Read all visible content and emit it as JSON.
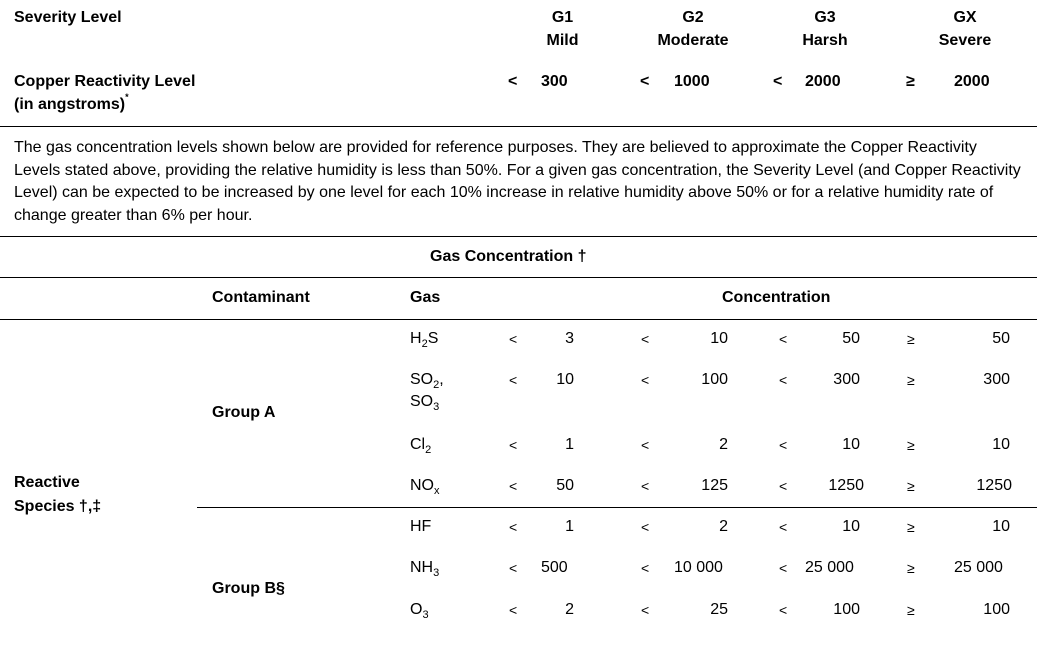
{
  "severity": {
    "label": "Severity Level",
    "levels": [
      {
        "code": "G1",
        "name": "Mild"
      },
      {
        "code": "G2",
        "name": "Moderate"
      },
      {
        "code": "G3",
        "name": "Harsh"
      },
      {
        "code": "GX",
        "name": "Severe"
      }
    ]
  },
  "copper": {
    "label_line1": "Copper Reactivity Level",
    "label_line2": "(in angstroms)",
    "footnote_mark": "*",
    "ops": [
      "<",
      "<",
      "<",
      "≥"
    ],
    "values": [
      "300",
      "1000",
      "2000",
      "2000"
    ]
  },
  "paragraph": "The gas concentration levels shown below are provided for reference purposes. They are believed to approximate the Copper Reactivity Levels stated above, providing the relative humidity is less than 50%. For a given gas concentration, the Severity Level (and Copper Reactivity Level) can be expected to be increased by one level for each 10% increase in relative humidity above 50% or for a relative humidity rate of change greater than 6% per hour.",
  "gas_concentration_title": "Gas Concentration †",
  "columns": {
    "contaminant": "Contaminant",
    "gas": "Gas",
    "concentration": "Concentration"
  },
  "reactive_species": {
    "line1": "Reactive",
    "line2": "Species †,‡"
  },
  "groups": {
    "a": "Group A",
    "b": "Group B§"
  },
  "gases": {
    "h2s": {
      "base": "H",
      "sub1": "2",
      "tail": "S"
    },
    "so2": {
      "base": "SO",
      "sub1": "2",
      "tail": ","
    },
    "so3": {
      "base": "SO",
      "sub1": "3"
    },
    "cl2": {
      "base": "Cl",
      "sub1": "2"
    },
    "nox": {
      "base": "NO",
      "sub1": "x"
    },
    "hf": {
      "base": "HF"
    },
    "nh3": {
      "base": "NH",
      "sub1": "3"
    },
    "o3": {
      "base": "O",
      "sub1": "3"
    }
  },
  "ops": {
    "lt": "<",
    "ge": "≥"
  },
  "rows": {
    "h2s": [
      "3",
      "10",
      "50",
      "50"
    ],
    "so": [
      "10",
      "100",
      "300",
      "300"
    ],
    "cl2": [
      "1",
      "2",
      "10",
      "10"
    ],
    "nox": [
      "50",
      "125",
      "1250",
      "1250"
    ],
    "hf": [
      "1",
      "2",
      "10",
      "10"
    ],
    "nh3": [
      "500",
      "10 000",
      "25 000",
      "25 000"
    ],
    "o3": [
      "2",
      "25",
      "100",
      "100"
    ]
  }
}
